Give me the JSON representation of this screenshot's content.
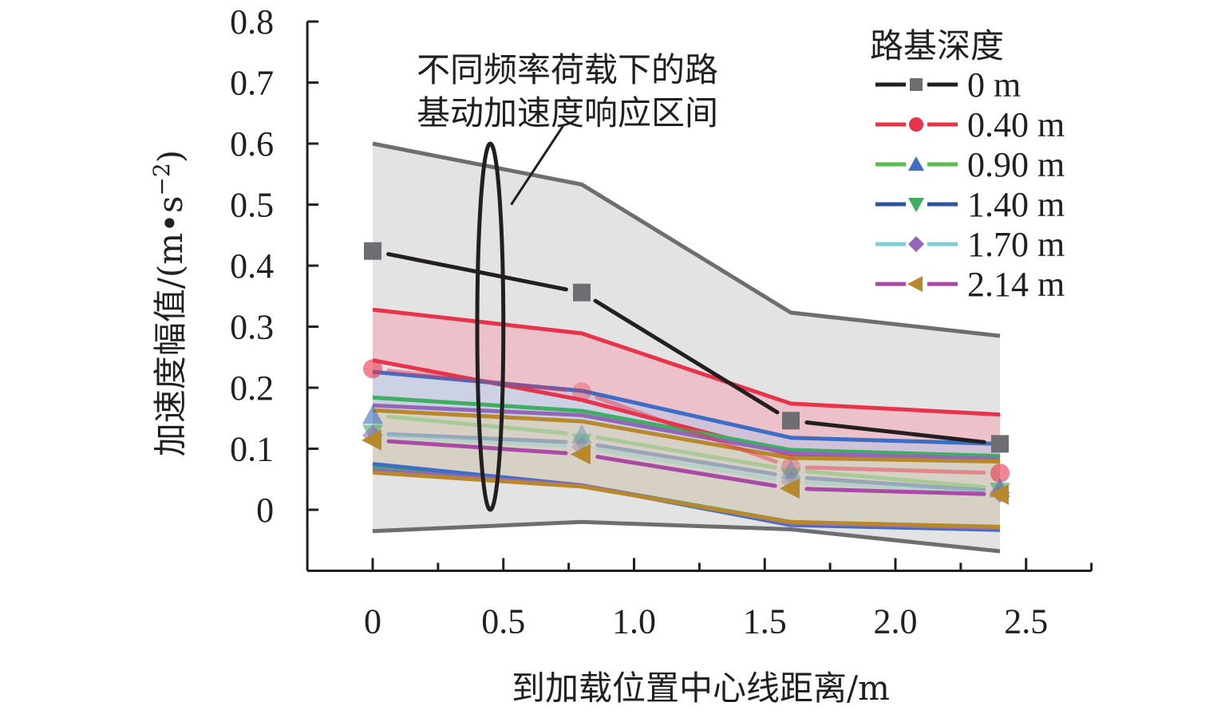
{
  "chart_data": {
    "type": "line",
    "title": "",
    "xlabel": "到加载位置中心线距离/m",
    "ylabel": "加速度幅值/(m•s⁻²)",
    "ylabel_parts": {
      "main": "加速度幅值/(m•s",
      "sup": "−2",
      "end": ")"
    },
    "xlim": [
      -0.25,
      2.75
    ],
    "ylim": [
      -0.1,
      0.8
    ],
    "xticks": [
      0,
      0.5,
      1.0,
      1.5,
      2.0,
      2.5
    ],
    "xtick_labels": [
      "0",
      "0.5",
      "1.0",
      "1.5",
      "2.0",
      "2.5"
    ],
    "yticks": [
      0,
      0.1,
      0.2,
      0.3,
      0.4,
      0.5,
      0.6,
      0.7,
      0.8
    ],
    "ytick_labels": [
      "0",
      "0.1",
      "0.2",
      "0.3",
      "0.4",
      "0.5",
      "0.6",
      "0.7",
      "0.8"
    ],
    "grid": false,
    "legend": {
      "title": "路基深度",
      "placement": "top-right"
    },
    "annotation": {
      "lines": [
        "不同频率荷载下的路",
        "基动加速度响应区间"
      ],
      "ellipse_center": [
        0.45,
        0.3
      ],
      "ellipse_x_radius": 0.05,
      "ellipse_y_radius": 0.3,
      "leader_from": [
        0.73,
        0.63
      ],
      "leader_to": [
        0.53,
        0.5
      ]
    },
    "x": [
      0,
      0.8,
      1.6,
      2.4
    ],
    "series": [
      {
        "name": "0 m",
        "line_color": "#231f20",
        "marker": "square",
        "marker_color": "#6d6e71",
        "values": [
          0.424,
          0.356,
          0.146,
          0.108
        ],
        "band": {
          "upper": [
            0.6,
            0.533,
            0.323,
            0.285
          ],
          "lower": [
            -0.035,
            -0.02,
            -0.032,
            -0.068
          ],
          "edge_color": "#6d6e71",
          "fill": "#d9d9da",
          "fill_opacity": 0.75
        }
      },
      {
        "name": "0.40 m",
        "line_color": "#e8344b",
        "marker": "circle",
        "marker_color": "#e8344b",
        "values": [
          0.231,
          0.193,
          0.07,
          0.06
        ],
        "band": {
          "upper": [
            0.328,
            0.289,
            0.174,
            0.156
          ],
          "lower": [
            0.245,
            0.18,
            0.09,
            0.08
          ],
          "edge_color": "#e8344b",
          "fill": "#f2aab7",
          "fill_opacity": 0.6
        }
      },
      {
        "name": "0.90 m",
        "line_color": "#5bbd4a",
        "marker": "triangle-up",
        "marker_color": "#3f6fbf",
        "values": [
          0.155,
          0.123,
          0.065,
          0.035
        ],
        "band": {
          "upper": [
            0.184,
            0.162,
            0.098,
            0.088
          ],
          "lower": [
            0.07,
            0.04,
            -0.02,
            -0.03
          ],
          "edge_color": "#3fae63",
          "fill": "#c6e3c0",
          "fill_opacity": 0.35
        }
      },
      {
        "name": "1.40 m",
        "line_color": "#2e55a4",
        "marker": "triangle-down",
        "marker_color": "#3fae63",
        "values": [
          0.125,
          0.11,
          0.054,
          0.03
        ],
        "band": {
          "upper": [
            0.226,
            0.195,
            0.118,
            0.108
          ],
          "lower": [
            0.075,
            0.04,
            -0.025,
            -0.033
          ],
          "edge_color": "#3d6ec4",
          "fill": "#b9c3e6",
          "fill_opacity": 0.55
        }
      },
      {
        "name": "1.70 m",
        "line_color": "#7ecfd3",
        "marker": "diamond",
        "marker_color": "#9367b8",
        "values": [
          0.122,
          0.103,
          0.046,
          0.028
        ],
        "band": {
          "upper": [
            0.171,
            0.155,
            0.093,
            0.083
          ],
          "lower": [
            0.065,
            0.04,
            -0.022,
            -0.03
          ],
          "edge_color": "#9367b8",
          "fill": "#d6c9e6",
          "fill_opacity": 0.3
        }
      },
      {
        "name": "2.14 m",
        "line_color": "#a94ba6",
        "marker": "triangle-left",
        "marker_color": "#b8892a",
        "values": [
          0.114,
          0.091,
          0.035,
          0.025
        ],
        "band": {
          "upper": [
            0.163,
            0.145,
            0.085,
            0.079
          ],
          "lower": [
            0.061,
            0.038,
            -0.02,
            -0.028
          ],
          "edge_color": "#b8892a",
          "fill": "#e0d3a8",
          "fill_opacity": 0.5
        }
      }
    ]
  }
}
